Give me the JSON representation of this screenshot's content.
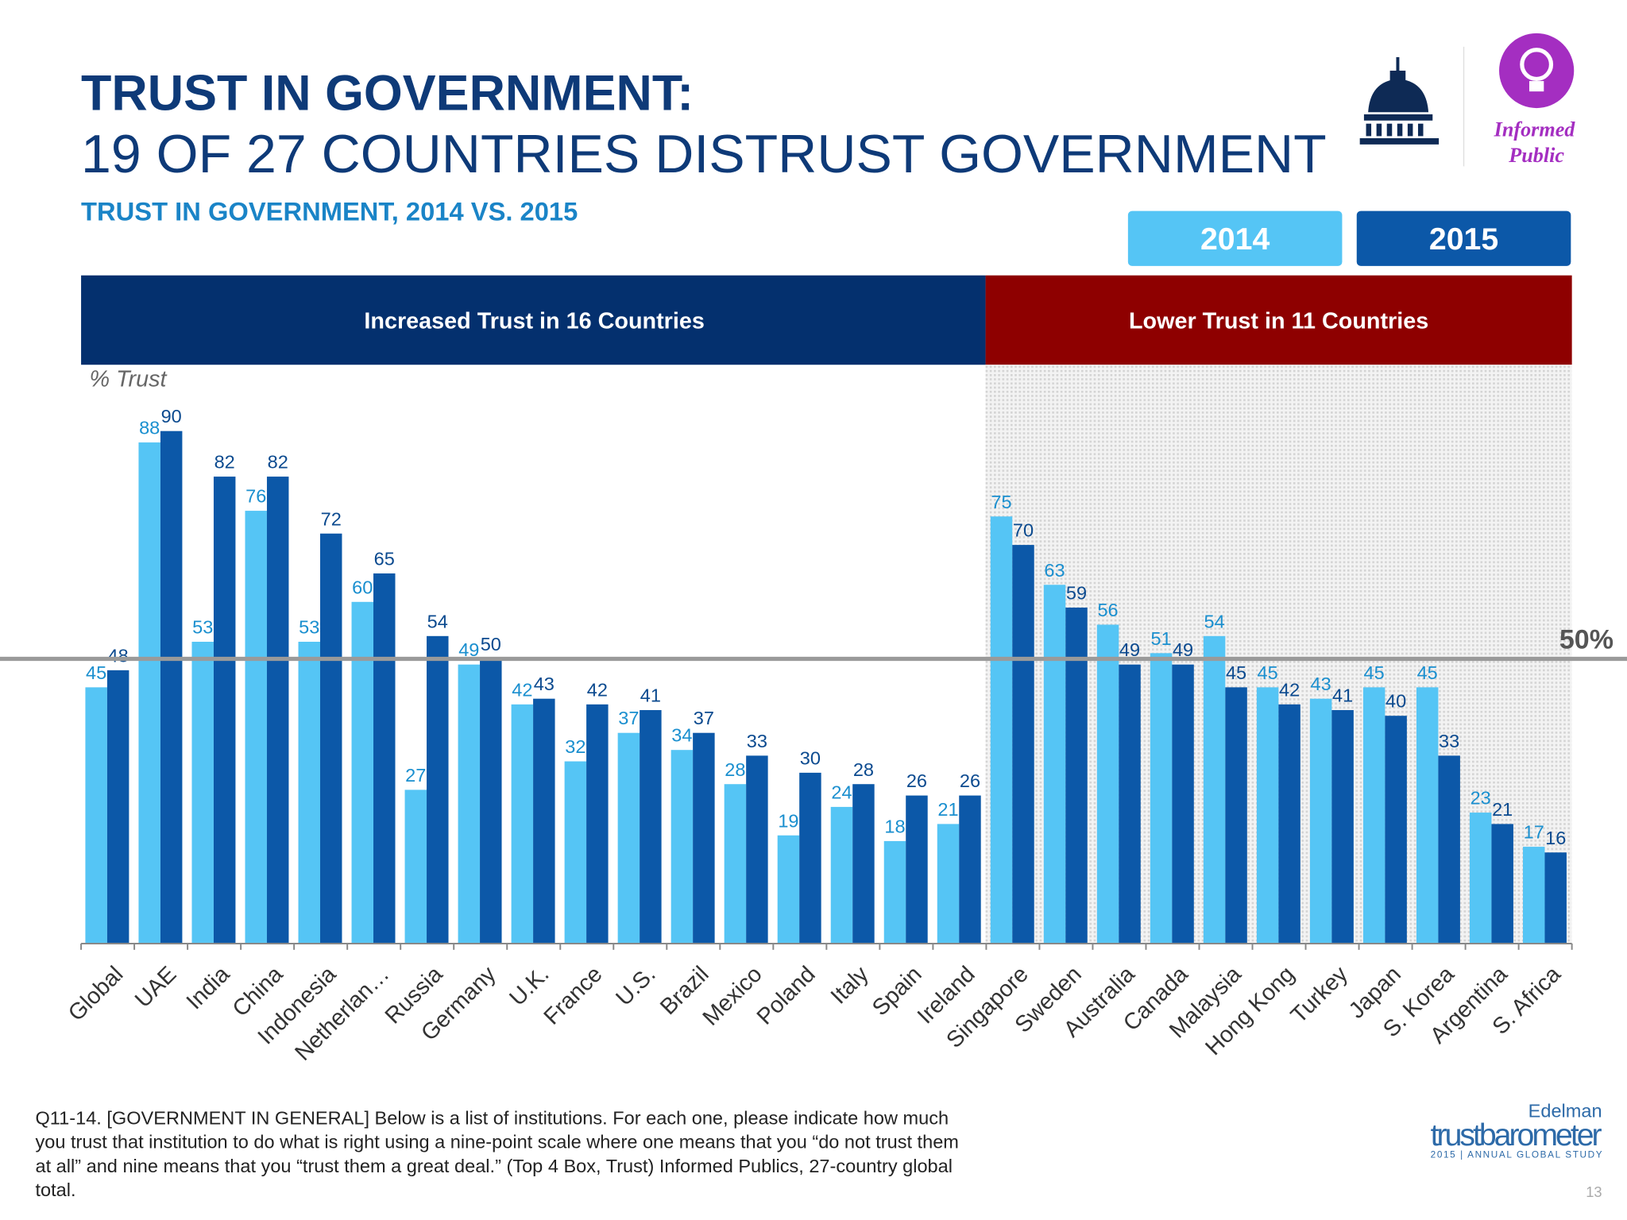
{
  "chart_data": {
    "type": "bar",
    "title": "TRUST IN GOVERNMENT:",
    "subtitle": "19 OF 27 COUNTRIES DISTRUST GOVERNMENT",
    "chart_label": "TRUST IN GOVERNMENT, 2014 VS. 2015",
    "y_label": "% Trust",
    "annotations": [
      "Increased Trust in 16 Countries",
      "Lower Trust in 11 Countries"
    ],
    "reference_line": {
      "value": 50,
      "label": "50%"
    },
    "categories": [
      "Global",
      "UAE",
      "India",
      "China",
      "Indonesia",
      "Netherlan…",
      "Russia",
      "Germany",
      "U.K.",
      "France",
      "U.S.",
      "Brazil",
      "Mexico",
      "Poland",
      "Italy",
      "Spain",
      "Ireland",
      "Singapore",
      "Sweden",
      "Australia",
      "Canada",
      "Malaysia",
      "Hong Kong",
      "Turkey",
      "Japan",
      "S. Korea",
      "Argentina",
      "S. Africa"
    ],
    "series": [
      {
        "name": "2014",
        "color": "#55c5f5",
        "label_color": "#1a8fcf",
        "values": [
          45,
          88,
          53,
          76,
          53,
          60,
          27,
          49,
          42,
          32,
          37,
          34,
          28,
          19,
          24,
          18,
          21,
          75,
          63,
          56,
          51,
          54,
          45,
          43,
          45,
          45,
          23,
          17
        ]
      },
      {
        "name": "2015",
        "color": "#0c58a8",
        "label_color": "#0b4a8f",
        "values": [
          48,
          90,
          82,
          82,
          72,
          65,
          54,
          50,
          43,
          42,
          41,
          37,
          33,
          30,
          28,
          26,
          26,
          70,
          59,
          49,
          49,
          45,
          42,
          41,
          40,
          33,
          21,
          16
        ]
      }
    ],
    "ylim": [
      0,
      100
    ]
  },
  "footnote": [
    "Q11-14. [GOVERNMENT IN GENERAL] Below is a list of institutions. For each one, please indicate how much",
    "you trust that institution to do what is right using a nine-point scale where one means that you “do not trust them",
    "at all” and nine means that you “trust them a great deal.” (Top 4 Box, Trust) Informed Publics, 27-country global",
    "total."
  ],
  "badge": [
    "Informed",
    "Public"
  ],
  "logo": [
    "Edelman",
    "trustbarometer",
    "2015 | ANNUAL GLOBAL STUDY"
  ],
  "page_number": "13"
}
